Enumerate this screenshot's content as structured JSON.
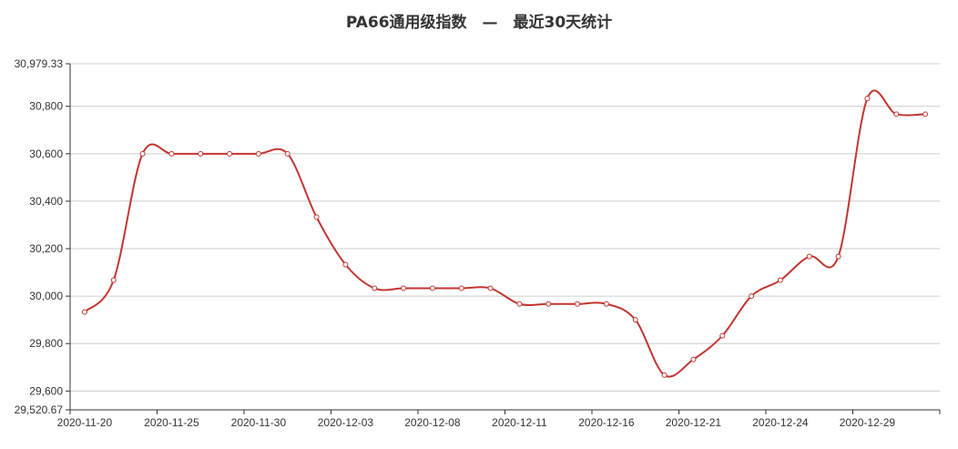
{
  "chart_data": {
    "type": "line",
    "title": "PA66通用级指数　—　最近30天统计",
    "xlabel": "",
    "ylabel": "",
    "ylim": [
      29520.67,
      30979.33
    ],
    "y_ticks": [
      29520.67,
      29600,
      29800,
      30000,
      30200,
      30400,
      30600,
      30800,
      30979.33
    ],
    "y_tick_labels": [
      "29,520.67",
      "29,600",
      "29,800",
      "30,000",
      "30,200",
      "30,400",
      "30,600",
      "30,800",
      "30,979.33"
    ],
    "x_tick_labels": [
      "2020-11-20",
      "2020-11-25",
      "2020-11-30",
      "2020-12-03",
      "2020-12-08",
      "2020-12-11",
      "2020-12-16",
      "2020-12-21",
      "2020-12-24",
      "2020-12-29"
    ],
    "grid": true,
    "line_color": "#c23531",
    "series": [
      {
        "values": [
          29933,
          30067,
          30600,
          30600,
          30600,
          30600,
          30600,
          30600,
          30333,
          30133,
          30033,
          30033,
          30033,
          30033,
          30033,
          29967,
          29967,
          29967,
          29967,
          29900,
          29667,
          29733,
          29833,
          30000,
          30067,
          30167,
          30167,
          30833,
          30767,
          30767
        ]
      }
    ]
  }
}
